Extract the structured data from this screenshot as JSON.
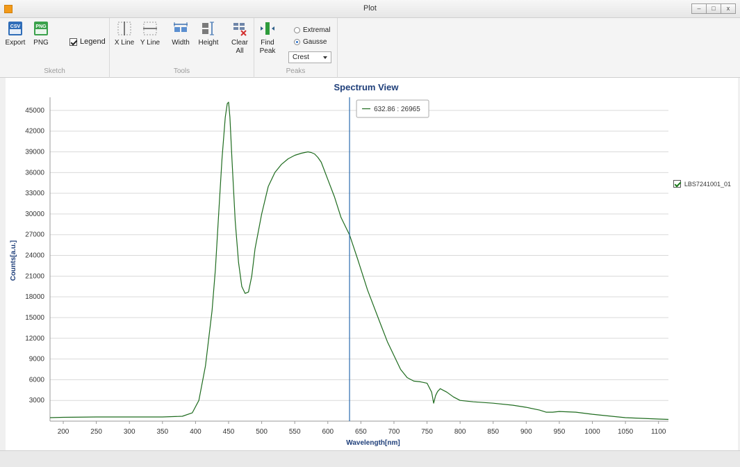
{
  "window": {
    "title": "Plot",
    "min_label": "–",
    "max_label": "□",
    "close_label": "x"
  },
  "ribbon": {
    "sketch": {
      "label": "Sketch",
      "export_label": "Export",
      "png_label": "PNG",
      "legend_label": "Legend",
      "legend_checked": true
    },
    "tools": {
      "label": "Tools",
      "xline_label": "X Line",
      "yline_label": "Y Line",
      "width_label": "Width",
      "height_label": "Height",
      "clear_label_1": "Clear",
      "clear_label_2": "All"
    },
    "peaks": {
      "label": "Peaks",
      "find_label_1": "Find",
      "find_label_2": "Peak",
      "extremal_label": "Extremal",
      "gausse_label": "Gausse",
      "mode_value": "Crest"
    }
  },
  "tooltip": {
    "text": "632.86 : 26965"
  },
  "series_legend": {
    "label": "LBS7241001_01"
  },
  "colors": {
    "series": "#1e6b1e",
    "cursor": "#2a6bb0",
    "title": "#1f3f7a",
    "grid": "#d9d9d9"
  },
  "chart_data": {
    "type": "line",
    "title": "Spectrum View",
    "xlabel": "Wavelength[nm]",
    "ylabel": "Counts[a.u.]",
    "xlim": [
      180,
      1115
    ],
    "ylim": [
      0,
      46500
    ],
    "x_ticks": [
      200,
      250,
      300,
      350,
      400,
      450,
      500,
      550,
      600,
      650,
      700,
      750,
      800,
      850,
      900,
      950,
      1000,
      1050,
      1100
    ],
    "y_ticks": [
      3000,
      6000,
      9000,
      12000,
      15000,
      18000,
      21000,
      24000,
      27000,
      30000,
      33000,
      36000,
      39000,
      42000,
      45000
    ],
    "grid": "horizontal",
    "cursor_x": 632.86,
    "series": [
      {
        "name": "LBS7241001_01",
        "x": [
          180,
          200,
          250,
          300,
          350,
          380,
          395,
          405,
          415,
          425,
          430,
          435,
          440,
          445,
          448,
          450,
          452,
          455,
          460,
          465,
          470,
          475,
          480,
          485,
          490,
          500,
          510,
          520,
          530,
          540,
          550,
          560,
          570,
          575,
          580,
          585,
          590,
          600,
          610,
          620,
          632.86,
          645,
          660,
          680,
          690,
          700,
          710,
          720,
          730,
          740,
          750,
          757,
          760,
          763,
          766,
          770,
          780,
          790,
          800,
          820,
          850,
          880,
          900,
          920,
          930,
          940,
          950,
          975,
          1000,
          1050,
          1100,
          1115
        ],
        "y": [
          500,
          550,
          600,
          600,
          600,
          700,
          1200,
          3000,
          8000,
          16000,
          22000,
          30000,
          38000,
          44000,
          46000,
          46200,
          44000,
          38000,
          29000,
          23000,
          19500,
          18500,
          18700,
          21000,
          25000,
          30000,
          34000,
          36000,
          37200,
          38000,
          38500,
          38800,
          39000,
          38900,
          38700,
          38200,
          37500,
          35000,
          32500,
          29500,
          26965,
          23500,
          19000,
          14000,
          11500,
          9500,
          7500,
          6300,
          5800,
          5700,
          5500,
          4200,
          2600,
          3700,
          4300,
          4700,
          4200,
          3500,
          3000,
          2800,
          2600,
          2300,
          2000,
          1600,
          1300,
          1300,
          1400,
          1300,
          1000,
          500,
          300,
          250
        ]
      }
    ]
  }
}
